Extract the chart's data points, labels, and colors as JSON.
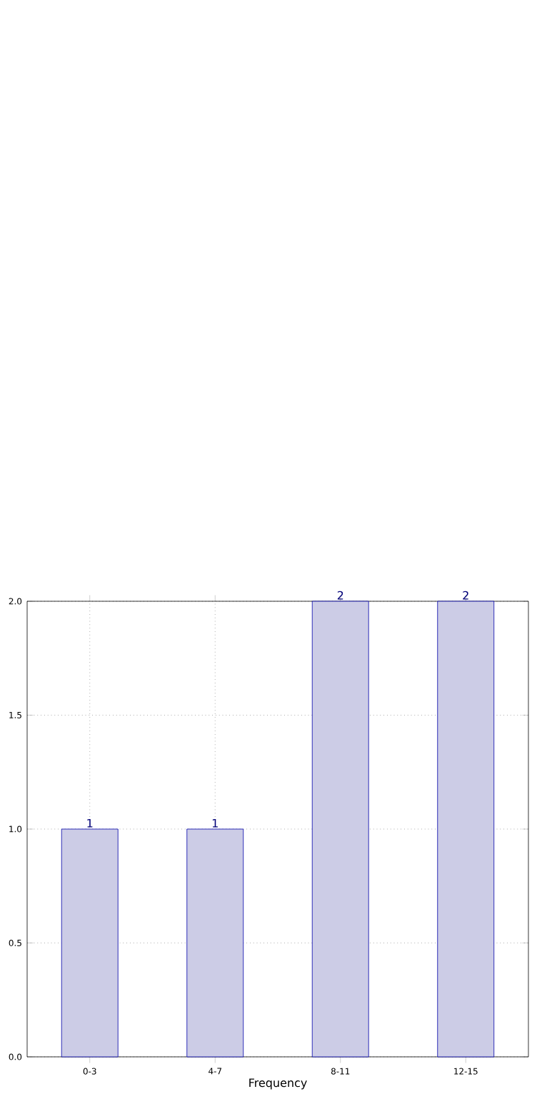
{
  "chart_data": {
    "type": "bar",
    "xlabel": "Frequency",
    "categories": [
      "0-3",
      "4-7",
      "8-11",
      "12-15"
    ],
    "values": [
      1,
      1,
      2,
      2
    ],
    "value_labels": [
      "1",
      "1",
      "2",
      "2"
    ],
    "color": "#cccce6",
    "ylim": [
      0,
      2
    ],
    "yticks": [
      {
        "value": 0,
        "label": "0.0"
      },
      {
        "value": 0.5,
        "label": "0.5"
      },
      {
        "value": 1,
        "label": "1.0"
      },
      {
        "value": 1.5,
        "label": "1.5"
      },
      {
        "value": 2,
        "label": "2.0"
      }
    ],
    "grid": true
  }
}
